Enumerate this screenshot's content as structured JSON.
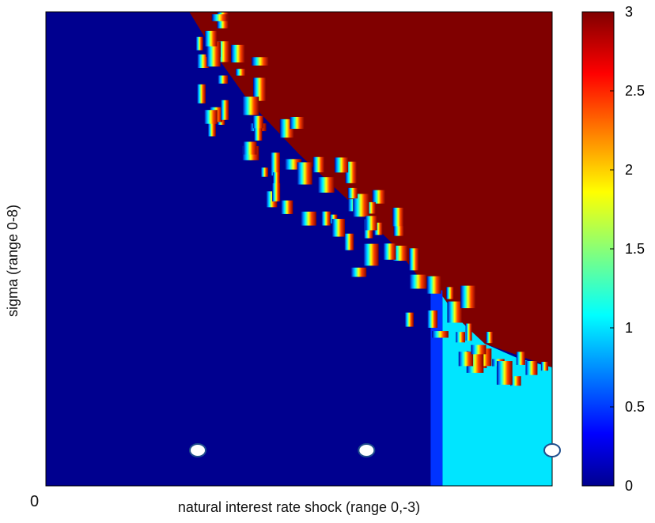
{
  "chart_data": {
    "type": "heatmap",
    "title": "",
    "xlabel": "natural interest rate shock (range 0,-3)",
    "ylabel": "sigma (range 0-8)",
    "origin_label": "0",
    "xlim": [
      0,
      -3
    ],
    "ylim": [
      0,
      8
    ],
    "colormap": "jet",
    "color_range": [
      0,
      3
    ],
    "colorbar_ticks": [
      "0",
      "0.5",
      "1",
      "1.5",
      "2",
      "2.5",
      "3"
    ],
    "colorbar_values": [
      0,
      0.5,
      1,
      1.5,
      2,
      2.5,
      3
    ],
    "regions": [
      {
        "value": 0,
        "description": "low-shock / low-sigma region (dark blue)"
      },
      {
        "value": 3,
        "description": "high region beyond boundary (dark red)"
      },
      {
        "value": 1,
        "description": "strong shock / low sigma region (cyan)"
      }
    ],
    "boundary": {
      "x": [
        -0.85,
        -1.0,
        -1.2,
        -1.5,
        -1.8,
        -2.05,
        -2.3,
        -2.6,
        -3.0
      ],
      "y": [
        8.0,
        7.3,
        6.5,
        5.6,
        4.8,
        4.1,
        3.2,
        2.4,
        2.0
      ]
    },
    "markers": [
      {
        "x": -0.9,
        "y": 0.6
      },
      {
        "x": -1.9,
        "y": 0.6
      },
      {
        "x": -3.0,
        "y": 0.6
      }
    ]
  },
  "colors": {
    "dark_blue": "#00008f",
    "blue": "#0033ff",
    "cyan": "#00e5ff",
    "dark_red": "#800000",
    "marker_fill": "#ffffff",
    "marker_stroke": "#1f4e8c"
  }
}
